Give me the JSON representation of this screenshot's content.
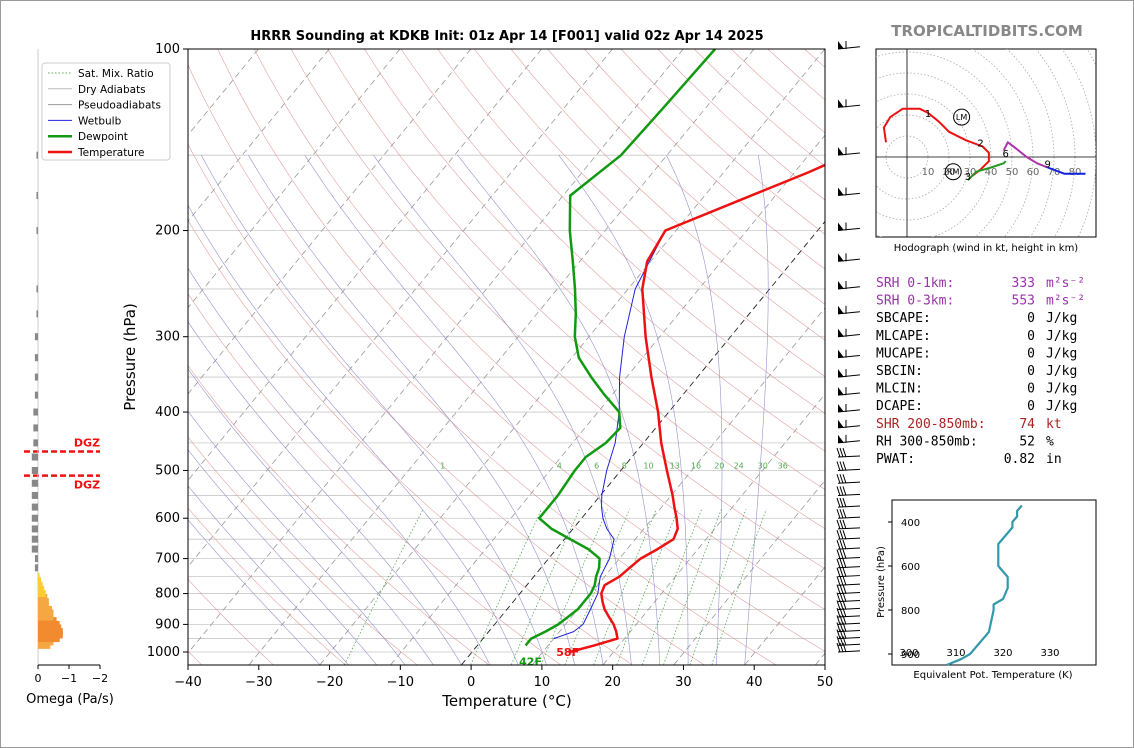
{
  "page": {
    "title": "HRRR Sounding at KDKB Init: 01z Apr 14 [F001] valid 02z Apr 14 2025",
    "brand": "TROPICALTIDBITS.COM"
  },
  "chart_data": [
    {
      "type": "line",
      "name": "skewt",
      "xlabel": "Temperature (°C)",
      "ylabel": "Pressure (hPa)",
      "xlim": [
        -40,
        50
      ],
      "ylim": [
        1030,
        100
      ],
      "y_scale": "log",
      "x_ticks": [
        -40,
        -30,
        -20,
        -10,
        0,
        10,
        20,
        30,
        40,
        50
      ],
      "y_ticks": [
        100,
        200,
        300,
        400,
        500,
        600,
        700,
        800,
        900,
        1000
      ],
      "legend": [
        "Sat. Mix. Ratio",
        "Dry Adiabats",
        "Pseudoadiabats",
        "Wetbulb",
        "Dewpoint",
        "Temperature"
      ],
      "legend_position": "top-left",
      "colors": {
        "temperature": "#ee1111",
        "dewpoint": "#119911",
        "wetbulb": "#2222dd",
        "dry": "#dd8888",
        "moist": "#8888cc",
        "mix": "#55aa55"
      },
      "mix_ratio_labels": [
        "1",
        "4",
        "6",
        "8",
        "10",
        "13",
        "16",
        "20",
        "24",
        "30",
        "36"
      ],
      "surface_labels": {
        "temperature": "58F",
        "dewpoint": "42F"
      },
      "dgz_label": "DGZ",
      "dgz_levels": [
        465,
        510
      ],
      "temperature": [
        [
          1000,
          13.8
        ],
        [
          975,
          16.5
        ],
        [
          950,
          19.0
        ],
        [
          925,
          18.0
        ],
        [
          900,
          16.8
        ],
        [
          875,
          15.3
        ],
        [
          850,
          13.8
        ],
        [
          825,
          12.6
        ],
        [
          800,
          11.5
        ],
        [
          775,
          11.0
        ],
        [
          750,
          12.1
        ],
        [
          725,
          12.5
        ],
        [
          700,
          13.0
        ],
        [
          675,
          14.3
        ],
        [
          650,
          15.4
        ],
        [
          625,
          14.8
        ],
        [
          600,
          13.4
        ],
        [
          575,
          11.8
        ],
        [
          550,
          10.2
        ],
        [
          500,
          6.5
        ],
        [
          450,
          2.5
        ],
        [
          400,
          -1.5
        ],
        [
          350,
          -6.5
        ],
        [
          300,
          -12.0
        ],
        [
          250,
          -18.0
        ],
        [
          225,
          -20.5
        ],
        [
          200,
          -21.5
        ],
        [
          160,
          -8.0
        ],
        [
          150,
          -4.5
        ],
        [
          125,
          -2.5
        ],
        [
          100,
          -1.5
        ]
      ],
      "dewpoint": [
        [
          975,
          6.8
        ],
        [
          950,
          6.8
        ],
        [
          925,
          8.0
        ],
        [
          900,
          9.0
        ],
        [
          875,
          9.5
        ],
        [
          850,
          10.0
        ],
        [
          800,
          10.0
        ],
        [
          775,
          9.6
        ],
        [
          750,
          8.8
        ],
        [
          725,
          8.2
        ],
        [
          700,
          7.2
        ],
        [
          675,
          4.5
        ],
        [
          650,
          0.8
        ],
        [
          625,
          -3.0
        ],
        [
          600,
          -6.0
        ],
        [
          575,
          -6.0
        ],
        [
          550,
          -6.0
        ],
        [
          500,
          -6.5
        ],
        [
          475,
          -6.5
        ],
        [
          450,
          -5.3
        ],
        [
          425,
          -5.0
        ],
        [
          400,
          -7.0
        ],
        [
          375,
          -11.0
        ],
        [
          350,
          -15.0
        ],
        [
          325,
          -19.0
        ],
        [
          300,
          -22.0
        ],
        [
          275,
          -24.5
        ],
        [
          250,
          -27.5
        ],
        [
          225,
          -31.0
        ],
        [
          200,
          -35.0
        ],
        [
          175,
          -39.0
        ],
        [
          150,
          -36.5
        ],
        [
          125,
          -36.0
        ],
        [
          100,
          -35.5
        ]
      ],
      "wetbulb": [
        [
          950,
          10.0
        ],
        [
          925,
          12.0
        ],
        [
          900,
          12.5
        ],
        [
          850,
          11.8
        ],
        [
          800,
          11.0
        ],
        [
          775,
          10.2
        ],
        [
          750,
          9.4
        ],
        [
          725,
          9.0
        ],
        [
          700,
          8.6
        ],
        [
          650,
          7.0
        ],
        [
          625,
          4.8
        ],
        [
          600,
          3.0
        ],
        [
          575,
          1.5
        ],
        [
          550,
          0.2
        ],
        [
          500,
          -2.0
        ],
        [
          450,
          -4.0
        ],
        [
          400,
          -7.0
        ],
        [
          350,
          -11.0
        ],
        [
          300,
          -15.0
        ],
        [
          250,
          -19.0
        ],
        [
          200,
          -21.5
        ],
        [
          160,
          -8.0
        ],
        [
          150,
          -4.5
        ],
        [
          125,
          -2.5
        ],
        [
          100,
          -1.5
        ]
      ]
    },
    {
      "type": "bar",
      "name": "omega",
      "xlabel": "Omega (Pa/s)",
      "x_ticks": [
        "0",
        "−1",
        "−2"
      ],
      "levels": [
        975,
        962,
        950,
        937,
        925,
        912,
        900,
        887,
        875,
        862,
        850,
        837,
        825,
        812,
        800,
        787,
        775,
        762,
        750,
        725,
        700,
        675,
        650,
        625,
        600,
        575,
        550,
        525,
        500,
        475,
        450,
        425,
        400,
        375,
        350,
        325,
        300,
        275,
        250,
        200,
        175,
        150
      ],
      "values": [
        0.4,
        0.5,
        0.7,
        0.8,
        0.8,
        0.75,
        0.7,
        0.6,
        0.5,
        0.5,
        0.45,
        0.35,
        0.35,
        0.3,
        0.25,
        0.2,
        0.15,
        0.1,
        0.05,
        -0.1,
        -0.1,
        -0.2,
        -0.2,
        -0.2,
        -0.2,
        -0.2,
        -0.2,
        -0.2,
        -0.2,
        -0.2,
        -0.15,
        -0.15,
        -0.15,
        -0.1,
        -0.1,
        -0.1,
        -0.1,
        -0.05,
        -0.05,
        -0.05,
        -0.05,
        -0.05
      ]
    },
    {
      "type": "line",
      "name": "hodograph",
      "xlabel": "Hodograph (wind in kt, height in km)",
      "ring_labels": [
        "10",
        "20",
        "30",
        "40",
        "50",
        "60",
        "70",
        "80"
      ],
      "height_labels": [
        {
          "t": "1",
          "u": 10,
          "v": 21
        },
        {
          "t": "2",
          "u": 35,
          "v": 7
        },
        {
          "t": "3",
          "u": 29,
          "v": -9
        },
        {
          "t": "6",
          "u": 47,
          "v": 2
        },
        {
          "t": "9",
          "u": 67,
          "v": -3
        }
      ],
      "markers": [
        {
          "t": "LM",
          "u": 26,
          "v": 19
        },
        {
          "t": "RM",
          "u": 22,
          "v": -7
        }
      ],
      "segments": [
        {
          "color": "#ee1111",
          "points": [
            [
              -10,
              7
            ],
            [
              -11,
              14
            ],
            [
              -8,
              19
            ],
            [
              -2,
              23
            ],
            [
              6,
              23
            ],
            [
              10,
              21
            ],
            [
              15,
              17
            ],
            [
              20,
              12
            ],
            [
              28,
              8
            ],
            [
              36,
              5
            ],
            [
              39,
              2
            ],
            [
              39,
              -2
            ],
            [
              35,
              -6
            ],
            [
              31,
              -9
            ],
            [
              29,
              -11
            ]
          ]
        },
        {
          "color": "#229922",
          "points": [
            [
              29,
              -11
            ],
            [
              33,
              -7
            ],
            [
              40,
              -5
            ],
            [
              46,
              -3
            ],
            [
              47,
              -2
            ]
          ]
        },
        {
          "color": "#aa33aa",
          "points": [
            [
              46,
              3
            ],
            [
              48,
              7
            ],
            [
              52,
              4
            ],
            [
              57,
              0
            ],
            [
              62,
              -3
            ],
            [
              67,
              -5
            ]
          ]
        },
        {
          "color": "#1122dd",
          "points": [
            [
              67,
              -5
            ],
            [
              75,
              -8
            ],
            [
              85,
              -8
            ]
          ]
        }
      ]
    },
    {
      "type": "line",
      "name": "theta_e",
      "xlabel": "Equivalent Pot. Temperature (K)",
      "ylabel": "Pressure (hPa)",
      "x_ticks": [
        "300",
        "310",
        "320",
        "330"
      ],
      "y_ticks": [
        "400",
        "600",
        "800",
        "900"
      ],
      "color": "#3399aa",
      "points": [
        [
          308,
          925
        ],
        [
          311,
          912
        ],
        [
          313,
          900
        ],
        [
          315,
          875
        ],
        [
          317,
          850
        ],
        [
          318,
          800
        ],
        [
          318,
          775
        ],
        [
          320,
          750
        ],
        [
          321,
          700
        ],
        [
          321,
          650
        ],
        [
          319,
          600
        ],
        [
          319,
          550
        ],
        [
          319,
          500
        ],
        [
          321,
          450
        ],
        [
          322,
          425
        ],
        [
          322,
          400
        ],
        [
          323,
          375
        ],
        [
          323,
          350
        ],
        [
          324,
          325
        ]
      ]
    }
  ],
  "params": [
    {
      "label": "SRH 0-1km:",
      "value": "333",
      "unit": "m²s⁻²",
      "color": "#9933aa"
    },
    {
      "label": "SRH 0-3km:",
      "value": "553",
      "unit": "m²s⁻²",
      "color": "#9933aa"
    },
    {
      "label": "SBCAPE:",
      "value": "0",
      "unit": "J/kg",
      "color": "#000000"
    },
    {
      "label": "MLCAPE:",
      "value": "0",
      "unit": "J/kg",
      "color": "#000000"
    },
    {
      "label": "MUCAPE:",
      "value": "0",
      "unit": "J/kg",
      "color": "#000000"
    },
    {
      "label": "SBCIN:",
      "value": "0",
      "unit": "J/kg",
      "color": "#000000"
    },
    {
      "label": "MLCIN:",
      "value": "0",
      "unit": "J/kg",
      "color": "#000000"
    },
    {
      "label": "DCAPE:",
      "value": "0",
      "unit": "J/kg",
      "color": "#000000"
    },
    {
      "label": "SHR 200-850mb:",
      "value": "74",
      "unit": "kt",
      "color": "#aa2222"
    },
    {
      "label": "RH 300-850mb:",
      "value": "52",
      "unit": "%",
      "color": "#000000"
    },
    {
      "label": "PWAT:",
      "value": "0.82",
      "unit": "in",
      "color": "#000000"
    }
  ]
}
